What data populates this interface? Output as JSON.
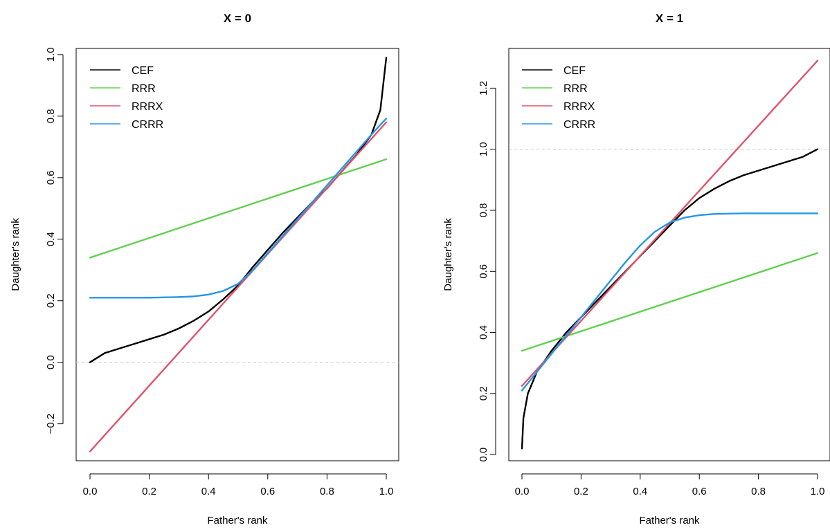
{
  "chart_data": [
    {
      "type": "line",
      "title": "X = 0",
      "xlabel": "Father's rank",
      "ylabel": "Daughter's rank",
      "xlim": [
        0,
        1
      ],
      "ylim": [
        -0.32,
        1.02
      ],
      "xticks": [
        "0.0",
        "0.2",
        "0.4",
        "0.6",
        "0.8",
        "1.0"
      ],
      "yticks": [
        "−0.2",
        "0.0",
        "0.2",
        "0.4",
        "0.6",
        "0.8",
        "1.0"
      ],
      "ytick_values": [
        -0.2,
        0,
        0.2,
        0.4,
        0.6,
        0.8,
        1.0
      ],
      "xtick_values": [
        0,
        0.2,
        0.4,
        0.6,
        0.8,
        1.0
      ],
      "reference_line": 0.0,
      "legend": "top-left",
      "grid": false,
      "x": [
        0,
        0.05,
        0.1,
        0.15,
        0.2,
        0.25,
        0.3,
        0.35,
        0.4,
        0.45,
        0.5,
        0.55,
        0.6,
        0.65,
        0.7,
        0.75,
        0.8,
        0.85,
        0.9,
        0.95,
        0.98,
        1.0
      ],
      "series": [
        {
          "name": "CEF",
          "color": "#000000",
          "values": [
            0.0,
            0.03,
            0.045,
            0.06,
            0.075,
            0.09,
            0.11,
            0.135,
            0.165,
            0.205,
            0.25,
            0.31,
            0.365,
            0.42,
            0.47,
            0.52,
            0.565,
            0.62,
            0.675,
            0.74,
            0.82,
            0.99
          ]
        },
        {
          "name": "RRR",
          "color": "#61D04F",
          "values": [
            0.34,
            0.356,
            0.372,
            0.388,
            0.404,
            0.42,
            0.436,
            0.452,
            0.468,
            0.484,
            0.5,
            0.516,
            0.532,
            0.548,
            0.564,
            0.58,
            0.596,
            0.612,
            0.628,
            0.644,
            0.6536,
            0.66
          ]
        },
        {
          "name": "RRRX",
          "color": "#DF536B",
          "values": [
            -0.29,
            -0.2365,
            -0.183,
            -0.1295,
            -0.076,
            -0.0225,
            0.031,
            0.0845,
            0.138,
            0.1915,
            0.245,
            0.2985,
            0.352,
            0.4055,
            0.459,
            0.5125,
            0.566,
            0.6195,
            0.673,
            0.7265,
            0.7586,
            0.78
          ]
        },
        {
          "name": "CRRR",
          "color": "#2297E6",
          "values": [
            0.21,
            0.21,
            0.21,
            0.21,
            0.21,
            0.211,
            0.212,
            0.214,
            0.22,
            0.232,
            0.255,
            0.3,
            0.355,
            0.41,
            0.465,
            0.52,
            0.575,
            0.63,
            0.685,
            0.74,
            0.772,
            0.792
          ]
        }
      ]
    },
    {
      "type": "line",
      "title": "X = 1",
      "xlabel": "Father's rank",
      "ylabel": "Daughter's rank",
      "xlim": [
        0,
        1
      ],
      "ylim": [
        -0.02,
        1.33
      ],
      "xticks": [
        "0.0",
        "0.2",
        "0.4",
        "0.6",
        "0.8",
        "1.0"
      ],
      "yticks": [
        "0.0",
        "0.2",
        "0.4",
        "0.6",
        "0.8",
        "1.0",
        "1.2"
      ],
      "ytick_values": [
        0,
        0.2,
        0.4,
        0.6,
        0.8,
        1.0,
        1.2
      ],
      "xtick_values": [
        0,
        0.2,
        0.4,
        0.6,
        0.8,
        1.0
      ],
      "reference_line": 1.0,
      "legend": "top-left",
      "grid": false,
      "x": [
        0,
        0.005,
        0.02,
        0.05,
        0.1,
        0.15,
        0.2,
        0.25,
        0.3,
        0.35,
        0.4,
        0.45,
        0.5,
        0.55,
        0.6,
        0.65,
        0.7,
        0.75,
        0.8,
        0.85,
        0.9,
        0.95,
        1.0
      ],
      "series": [
        {
          "name": "CEF",
          "color": "#000000",
          "values": [
            0.02,
            0.12,
            0.2,
            0.27,
            0.34,
            0.4,
            0.45,
            0.5,
            0.55,
            0.6,
            0.65,
            0.7,
            0.75,
            0.8,
            0.84,
            0.87,
            0.895,
            0.915,
            0.93,
            0.945,
            0.96,
            0.975,
            1.0
          ]
        },
        {
          "name": "RRR",
          "color": "#61D04F",
          "values": [
            0.34,
            0.3416,
            0.3464,
            0.356,
            0.372,
            0.388,
            0.404,
            0.42,
            0.436,
            0.452,
            0.468,
            0.484,
            0.5,
            0.516,
            0.532,
            0.548,
            0.564,
            0.58,
            0.596,
            0.612,
            0.628,
            0.644,
            0.66
          ]
        },
        {
          "name": "RRRX",
          "color": "#DF536B",
          "values": [
            0.225,
            0.2303,
            0.2463,
            0.2783,
            0.3315,
            0.3848,
            0.438,
            0.4913,
            0.5445,
            0.5978,
            0.651,
            0.7043,
            0.7575,
            0.8108,
            0.864,
            0.9173,
            0.9705,
            1.0238,
            1.077,
            1.1303,
            1.1835,
            1.2368,
            1.29
          ]
        },
        {
          "name": "CRRR",
          "color": "#2297E6",
          "values": [
            0.21,
            0.216,
            0.234,
            0.27,
            0.33,
            0.39,
            0.45,
            0.51,
            0.57,
            0.63,
            0.685,
            0.73,
            0.76,
            0.776,
            0.784,
            0.788,
            0.789,
            0.79,
            0.79,
            0.79,
            0.79,
            0.79,
            0.79
          ]
        }
      ]
    }
  ]
}
